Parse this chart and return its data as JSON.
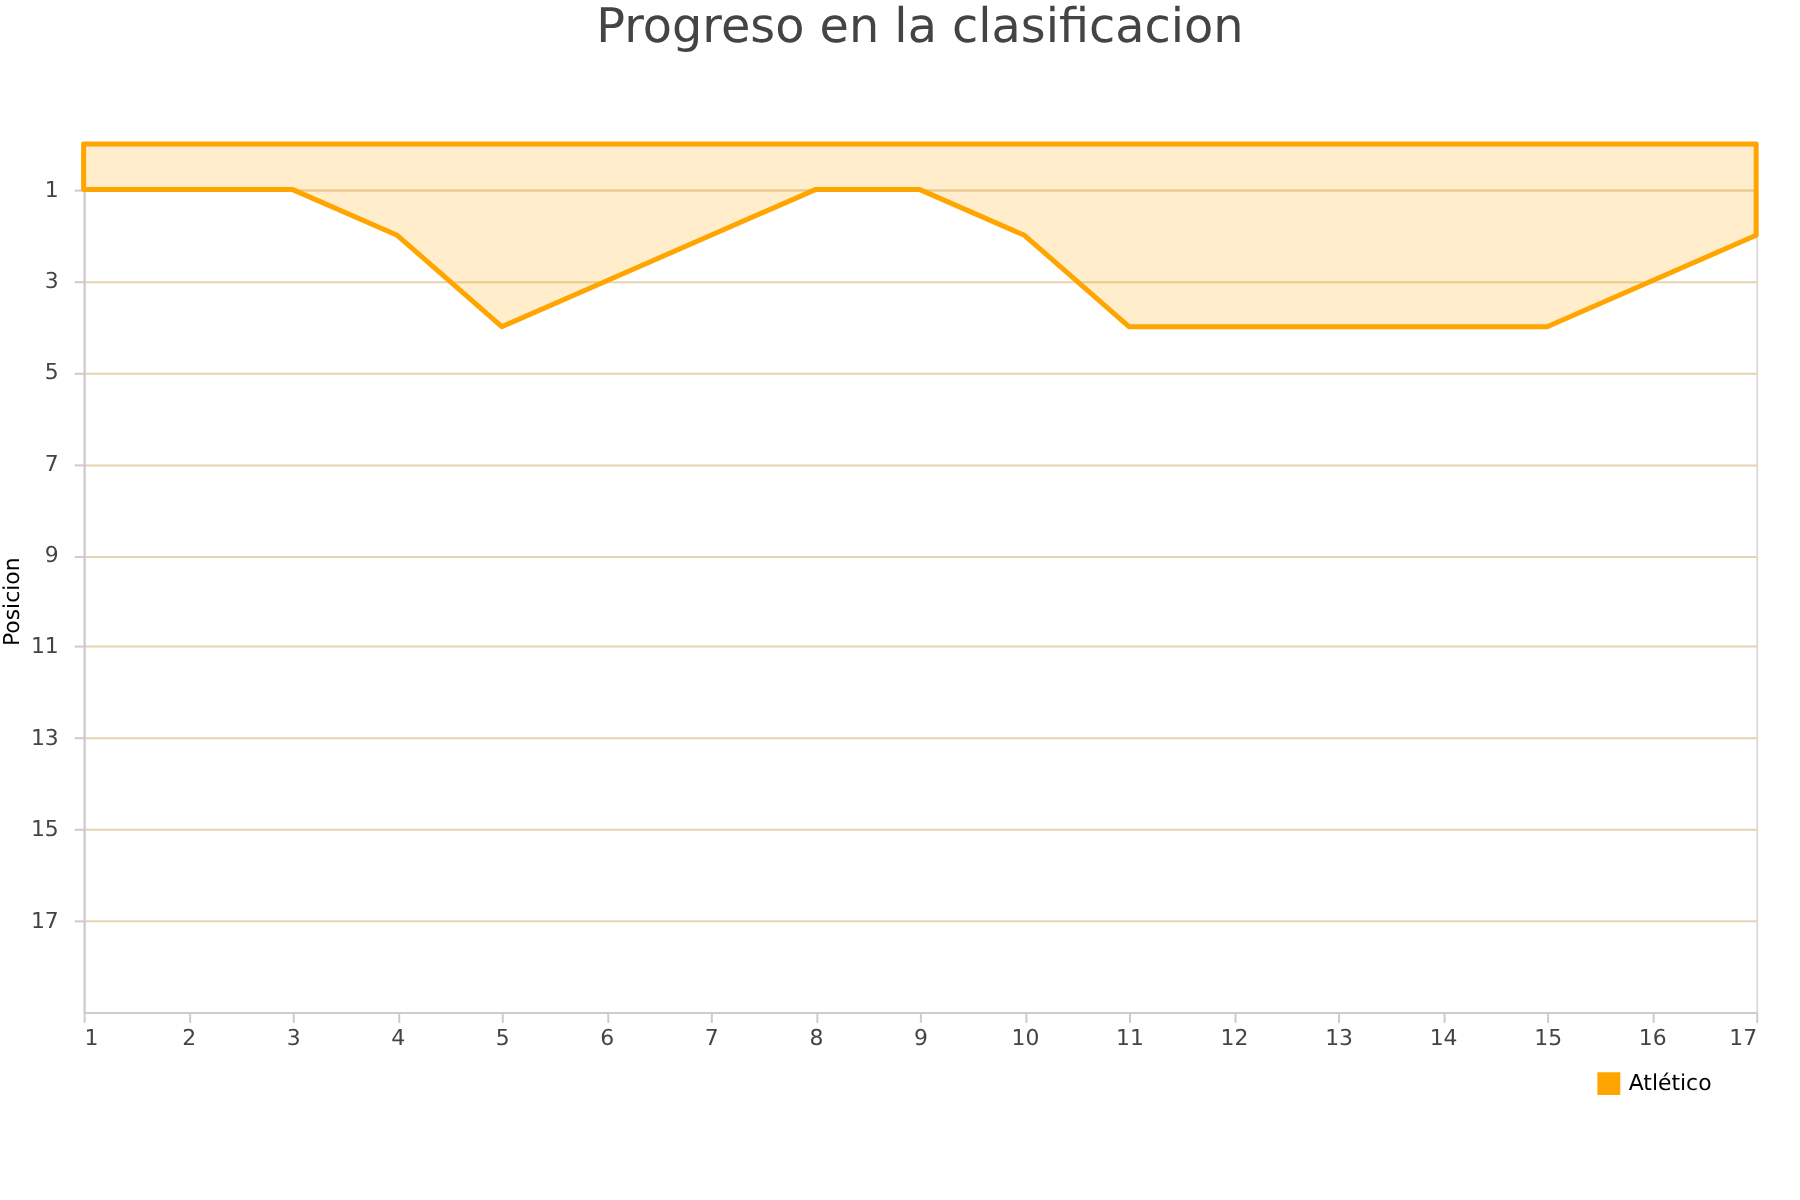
{
  "chart_data": {
    "type": "area",
    "title": "Progreso en la clasificacion",
    "ylabel": "Posicion",
    "x": [
      1,
      2,
      3,
      4,
      5,
      6,
      7,
      8,
      9,
      10,
      11,
      12,
      13,
      14,
      15,
      16,
      17
    ],
    "series": [
      {
        "name": "Atlético",
        "color": "#ffa500",
        "values": [
          1,
          1,
          1,
          2,
          4,
          3,
          2,
          1,
          1,
          2,
          4,
          4,
          4,
          4,
          4,
          3,
          2
        ]
      }
    ],
    "xlim": [
      1,
      17
    ],
    "xticks": [
      1,
      2,
      3,
      4,
      5,
      6,
      7,
      8,
      9,
      10,
      11,
      12,
      13,
      14,
      15,
      16,
      17
    ],
    "ylim": [
      19,
      1
    ],
    "yticks": [
      1,
      3,
      5,
      7,
      9,
      11,
      13,
      15,
      17
    ],
    "grid": "y",
    "legend": "bottom right"
  }
}
